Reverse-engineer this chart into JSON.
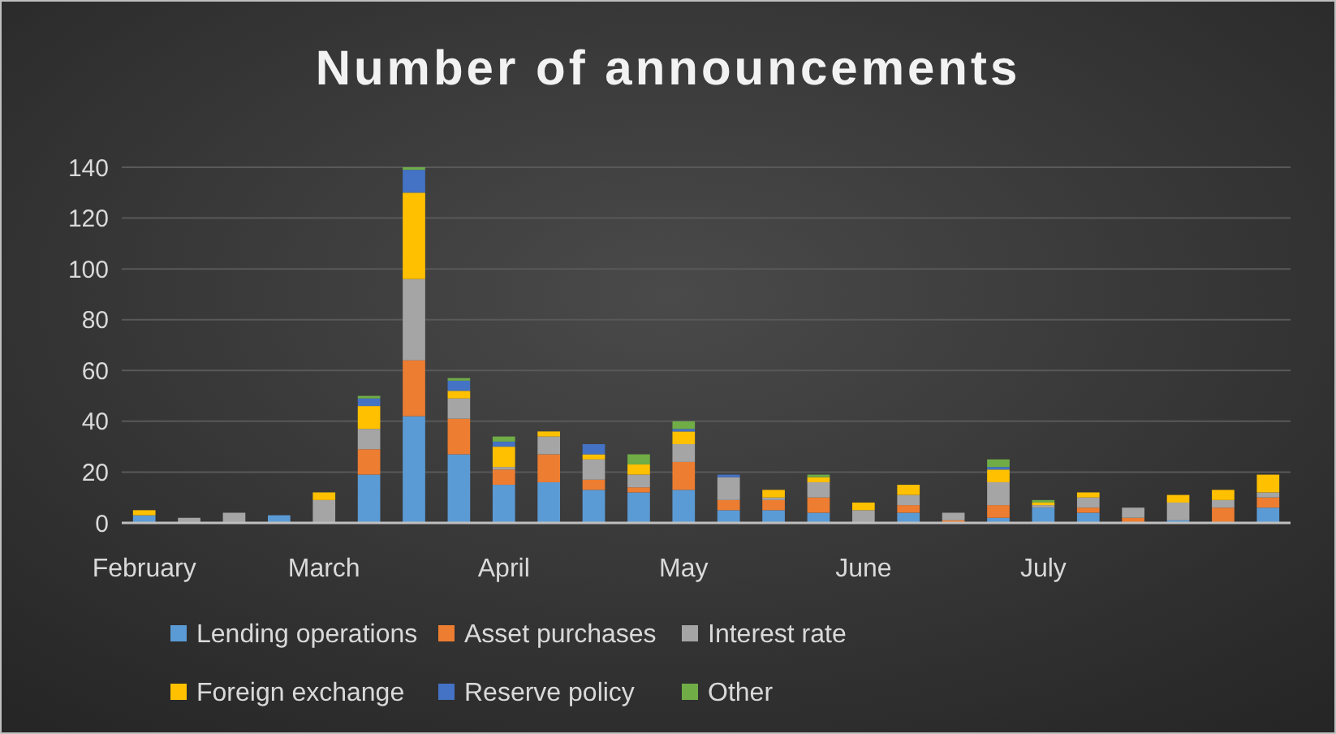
{
  "chart_data": {
    "type": "bar",
    "title": "Number of announcements",
    "stacked": true,
    "categories": [
      "February",
      null,
      null,
      null,
      "March",
      null,
      null,
      null,
      "April",
      null,
      null,
      null,
      "May",
      null,
      null,
      null,
      "June",
      null,
      null,
      null,
      "July",
      null,
      null,
      null,
      null,
      null
    ],
    "series": [
      {
        "name": "Lending operations",
        "color": "#5b9bd5",
        "values": [
          3,
          0,
          0,
          3,
          0,
          19,
          42,
          27,
          15,
          16,
          13,
          12,
          13,
          5,
          5,
          4,
          0,
          4,
          0,
          2,
          6,
          4,
          0,
          1,
          0,
          6
        ]
      },
      {
        "name": "Asset purchases",
        "color": "#ed7d31",
        "values": [
          0,
          0,
          0,
          0,
          0,
          10,
          22,
          14,
          6,
          11,
          4,
          2,
          11,
          4,
          4,
          6,
          0,
          3,
          1,
          5,
          0,
          2,
          2,
          0,
          6,
          4
        ]
      },
      {
        "name": "Interest rate",
        "color": "#a5a5a5",
        "values": [
          0,
          2,
          4,
          0,
          9,
          8,
          32,
          8,
          1,
          7,
          8,
          5,
          7,
          9,
          1,
          6,
          5,
          4,
          3,
          9,
          1,
          4,
          4,
          7,
          3,
          2
        ]
      },
      {
        "name": "Foreign exchange",
        "color": "#ffc000",
        "values": [
          2,
          0,
          0,
          0,
          3,
          9,
          34,
          3,
          8,
          2,
          2,
          4,
          5,
          0,
          3,
          2,
          3,
          4,
          0,
          5,
          1,
          2,
          0,
          3,
          4,
          7
        ]
      },
      {
        "name": "Reserve policy",
        "color": "#4472c4",
        "values": [
          0,
          0,
          0,
          0,
          0,
          3,
          9,
          4,
          2,
          0,
          4,
          0,
          1,
          1,
          0,
          0,
          0,
          0,
          0,
          1,
          0,
          0,
          0,
          0,
          0,
          0
        ]
      },
      {
        "name": "Other",
        "color": "#70ad47",
        "values": [
          0,
          0,
          0,
          0,
          0,
          1,
          1,
          1,
          2,
          0,
          0,
          4,
          3,
          0,
          0,
          1,
          0,
          0,
          0,
          3,
          1,
          0,
          0,
          0,
          0,
          0
        ]
      }
    ],
    "ylim": [
      0,
      140
    ],
    "yticks": [
      0,
      20,
      40,
      60,
      80,
      100,
      120,
      140
    ],
    "grid": "y",
    "legend": "bottom"
  }
}
